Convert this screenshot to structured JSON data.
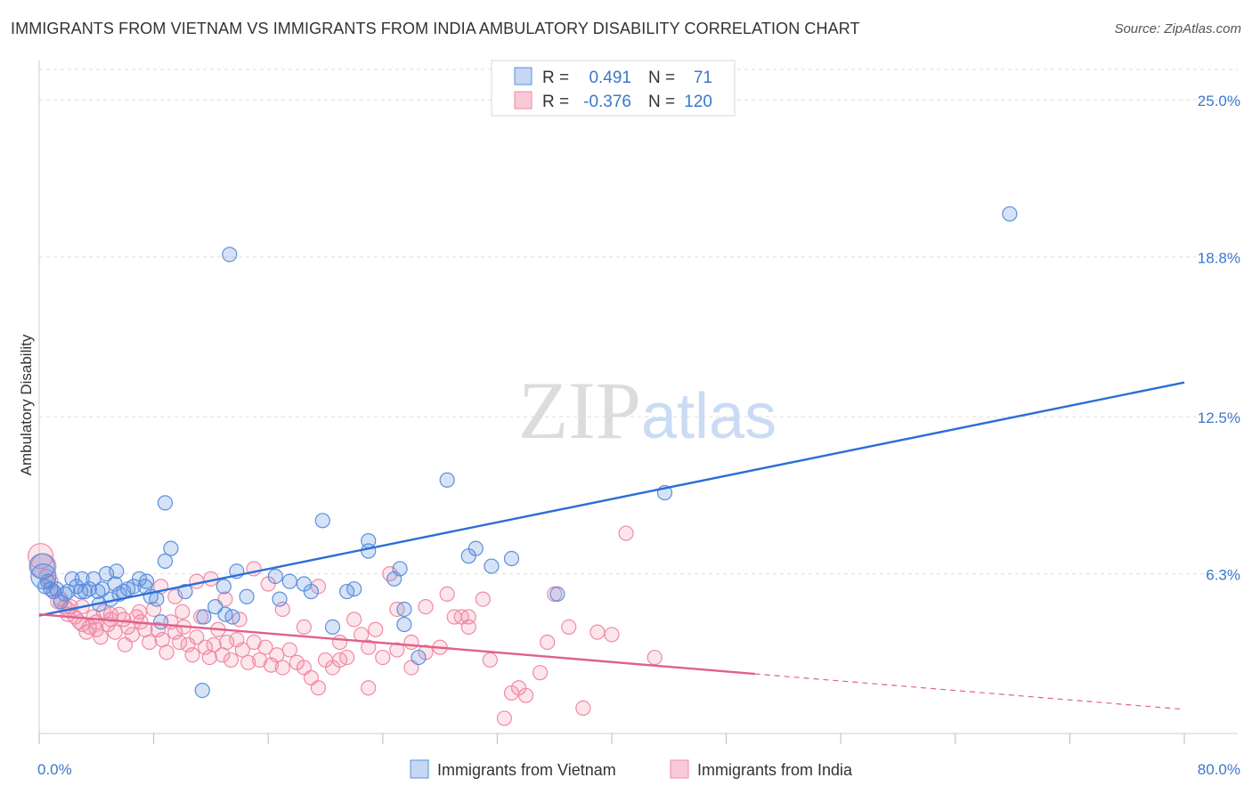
{
  "title": "IMMIGRANTS FROM VIETNAM VS IMMIGRANTS FROM INDIA AMBULATORY DISABILITY CORRELATION CHART",
  "source": "Source: ZipAtlas.com",
  "watermark": {
    "zip": "ZIP",
    "atlas": "atlas"
  },
  "colors": {
    "vietnam": "#5b8fde",
    "vietnam_line": "#2b6fd6",
    "india": "#f08aa6",
    "india_line": "#e0608a",
    "label": "#3a78c9"
  },
  "stats": {
    "r_label": "R =",
    "n_label": "N =",
    "rows": [
      {
        "series": "vietnam",
        "r": "0.491",
        "n": "71"
      },
      {
        "series": "india",
        "r": "-0.376",
        "n": "120"
      }
    ]
  },
  "chart_data": {
    "type": "scatter",
    "title": "IMMIGRANTS FROM VIETNAM VS IMMIGRANTS FROM INDIA AMBULATORY DISABILITY CORRELATION CHART",
    "xlabel": "",
    "ylabel": "Ambulatory Disability",
    "xlim": [
      0,
      80
    ],
    "ylim": [
      0,
      26.2
    ],
    "x_tick_labels": [
      {
        "value": 0,
        "label": "0.0%"
      },
      {
        "value": 80,
        "label": "80.0%"
      }
    ],
    "y_tick_labels": [
      {
        "value": 6.3,
        "label": "6.3%"
      },
      {
        "value": 12.5,
        "label": "12.5%"
      },
      {
        "value": 18.8,
        "label": "18.8%"
      },
      {
        "value": 25.0,
        "label": "25.0%"
      }
    ],
    "grid": "horizontal dashed",
    "legend_position": "bottom-center",
    "series": [
      {
        "name": "Immigrants from Vietnam",
        "points": [
          [
            0.2,
            6.6
          ],
          [
            0.3,
            6.2
          ],
          [
            0.4,
            5.8
          ],
          [
            0.6,
            6.0
          ],
          [
            0.8,
            5.7
          ],
          [
            1.0,
            5.6
          ],
          [
            1.2,
            5.7
          ],
          [
            1.5,
            5.2
          ],
          [
            1.8,
            5.5
          ],
          [
            2.0,
            5.6
          ],
          [
            2.3,
            6.1
          ],
          [
            2.6,
            5.8
          ],
          [
            2.9,
            5.6
          ],
          [
            3.2,
            5.6
          ],
          [
            3.5,
            5.7
          ],
          [
            3.8,
            6.1
          ],
          [
            4.1,
            5.6
          ],
          [
            4.4,
            5.7
          ],
          [
            4.7,
            6.3
          ],
          [
            5.0,
            5.3
          ],
          [
            5.3,
            5.9
          ],
          [
            5.6,
            5.5
          ],
          [
            5.9,
            5.6
          ],
          [
            6.2,
            5.7
          ],
          [
            6.6,
            5.8
          ],
          [
            7.0,
            6.1
          ],
          [
            7.4,
            5.8
          ],
          [
            7.8,
            5.4
          ],
          [
            8.2,
            5.3
          ],
          [
            8.5,
            4.4
          ],
          [
            8.8,
            6.8
          ],
          [
            9.2,
            7.3
          ],
          [
            10.2,
            5.6
          ],
          [
            11.5,
            4.6
          ],
          [
            12.3,
            5.0
          ],
          [
            12.9,
            5.8
          ],
          [
            13.0,
            4.7
          ],
          [
            13.5,
            4.6
          ],
          [
            14.5,
            5.4
          ],
          [
            16.5,
            6.2
          ],
          [
            17.5,
            6.0
          ],
          [
            18.5,
            5.9
          ],
          [
            19.0,
            5.6
          ],
          [
            19.8,
            8.4
          ],
          [
            20.5,
            4.2
          ],
          [
            22.0,
            5.7
          ],
          [
            23.0,
            7.2
          ],
          [
            24.8,
            6.1
          ],
          [
            25.5,
            4.9
          ],
          [
            25.5,
            4.3
          ],
          [
            26.5,
            3.0
          ],
          [
            30.5,
            7.3
          ],
          [
            28.5,
            10.0
          ],
          [
            31.6,
            6.6
          ],
          [
            33.0,
            6.9
          ],
          [
            36.2,
            5.5
          ],
          [
            43.7,
            9.5
          ],
          [
            5.4,
            6.4
          ],
          [
            8.8,
            9.1
          ],
          [
            11.4,
            1.7
          ],
          [
            13.8,
            6.4
          ],
          [
            16.8,
            5.3
          ],
          [
            21.5,
            5.6
          ],
          [
            23.0,
            7.6
          ],
          [
            25.2,
            6.5
          ],
          [
            30.0,
            7.0
          ],
          [
            7.5,
            6.0
          ],
          [
            3.0,
            6.1
          ],
          [
            4.2,
            5.1
          ],
          [
            13.3,
            18.9
          ],
          [
            67.8,
            20.5
          ]
        ]
      },
      {
        "name": "Immigrants from India",
        "points": [
          [
            0.1,
            7.0
          ],
          [
            0.3,
            6.6
          ],
          [
            0.5,
            6.2
          ],
          [
            0.8,
            6.0
          ],
          [
            1.0,
            5.6
          ],
          [
            1.3,
            5.2
          ],
          [
            1.5,
            5.3
          ],
          [
            1.8,
            5.0
          ],
          [
            2.0,
            4.7
          ],
          [
            2.2,
            5.0
          ],
          [
            2.5,
            4.6
          ],
          [
            2.8,
            4.4
          ],
          [
            3.0,
            4.3
          ],
          [
            3.3,
            4.0
          ],
          [
            3.5,
            4.2
          ],
          [
            3.8,
            4.6
          ],
          [
            4.0,
            4.1
          ],
          [
            4.3,
            3.8
          ],
          [
            4.5,
            4.8
          ],
          [
            4.8,
            4.3
          ],
          [
            5.0,
            4.5
          ],
          [
            5.3,
            4.0
          ],
          [
            5.6,
            4.7
          ],
          [
            5.9,
            4.5
          ],
          [
            6.2,
            4.2
          ],
          [
            6.5,
            3.9
          ],
          [
            6.8,
            4.6
          ],
          [
            7.1,
            4.4
          ],
          [
            7.4,
            4.1
          ],
          [
            7.7,
            3.6
          ],
          [
            8.0,
            4.9
          ],
          [
            8.3,
            4.1
          ],
          [
            8.6,
            3.7
          ],
          [
            8.9,
            3.2
          ],
          [
            9.2,
            4.4
          ],
          [
            9.5,
            4.0
          ],
          [
            9.8,
            3.6
          ],
          [
            10.1,
            4.2
          ],
          [
            10.4,
            3.5
          ],
          [
            10.7,
            3.1
          ],
          [
            11.0,
            3.8
          ],
          [
            11.3,
            4.6
          ],
          [
            11.6,
            3.4
          ],
          [
            11.9,
            3.0
          ],
          [
            12.2,
            3.5
          ],
          [
            12.5,
            4.1
          ],
          [
            12.8,
            3.1
          ],
          [
            13.1,
            3.6
          ],
          [
            13.4,
            2.9
          ],
          [
            13.8,
            3.7
          ],
          [
            14.2,
            3.3
          ],
          [
            14.6,
            2.8
          ],
          [
            15.0,
            3.6
          ],
          [
            15.4,
            2.9
          ],
          [
            15.8,
            3.4
          ],
          [
            16.2,
            2.7
          ],
          [
            16.6,
            3.1
          ],
          [
            17.0,
            2.6
          ],
          [
            17.5,
            3.3
          ],
          [
            18.0,
            2.8
          ],
          [
            18.5,
            2.6
          ],
          [
            19.0,
            2.2
          ],
          [
            19.5,
            1.8
          ],
          [
            20.0,
            2.9
          ],
          [
            20.5,
            2.6
          ],
          [
            21.0,
            3.6
          ],
          [
            21.5,
            3.0
          ],
          [
            22.0,
            4.5
          ],
          [
            22.5,
            3.9
          ],
          [
            23.0,
            3.4
          ],
          [
            23.5,
            4.1
          ],
          [
            24.0,
            3.0
          ],
          [
            25.0,
            4.9
          ],
          [
            26.0,
            3.6
          ],
          [
            27.0,
            5.0
          ],
          [
            28.0,
            3.4
          ],
          [
            29.0,
            4.6
          ],
          [
            30.0,
            4.2
          ],
          [
            31.0,
            5.3
          ],
          [
            33.0,
            1.6
          ],
          [
            34.0,
            1.5
          ],
          [
            35.0,
            2.4
          ],
          [
            36.0,
            5.5
          ],
          [
            37.0,
            4.2
          ],
          [
            38.0,
            1.0
          ],
          [
            39.0,
            4.0
          ],
          [
            40.0,
            3.9
          ],
          [
            41.0,
            7.9
          ],
          [
            43.0,
            3.0
          ],
          [
            12.0,
            6.1
          ],
          [
            13.0,
            5.3
          ],
          [
            14.0,
            4.5
          ],
          [
            15.0,
            6.5
          ],
          [
            16.0,
            5.9
          ],
          [
            17.0,
            4.9
          ],
          [
            18.5,
            4.2
          ],
          [
            19.5,
            5.8
          ],
          [
            21.0,
            2.9
          ],
          [
            23.0,
            1.8
          ],
          [
            24.5,
            6.3
          ],
          [
            25.0,
            3.3
          ],
          [
            26.0,
            2.6
          ],
          [
            27.0,
            3.2
          ],
          [
            28.5,
            5.5
          ],
          [
            29.5,
            4.6
          ],
          [
            30.0,
            4.6
          ],
          [
            31.5,
            2.9
          ],
          [
            32.5,
            0.6
          ],
          [
            33.5,
            1.8
          ],
          [
            35.5,
            3.6
          ],
          [
            11.0,
            6.0
          ],
          [
            10.0,
            4.8
          ],
          [
            9.5,
            5.4
          ],
          [
            8.5,
            5.8
          ],
          [
            7.0,
            4.8
          ],
          [
            6.0,
            3.5
          ],
          [
            5.0,
            4.7
          ],
          [
            4.0,
            4.4
          ],
          [
            3.0,
            5.0
          ],
          [
            2.0,
            4.9
          ]
        ]
      }
    ],
    "trend_lines": [
      {
        "series": "Immigrants from Vietnam",
        "from": [
          0,
          4.65
        ],
        "to": [
          80,
          13.85
        ],
        "style": "solid"
      },
      {
        "series": "Immigrants from India",
        "from": [
          0,
          4.7
        ],
        "to": [
          50,
          2.35
        ],
        "style": "solid"
      },
      {
        "series": "Immigrants from India",
        "from": [
          50,
          2.35
        ],
        "to": [
          80,
          0.95
        ],
        "style": "dashed"
      }
    ]
  }
}
